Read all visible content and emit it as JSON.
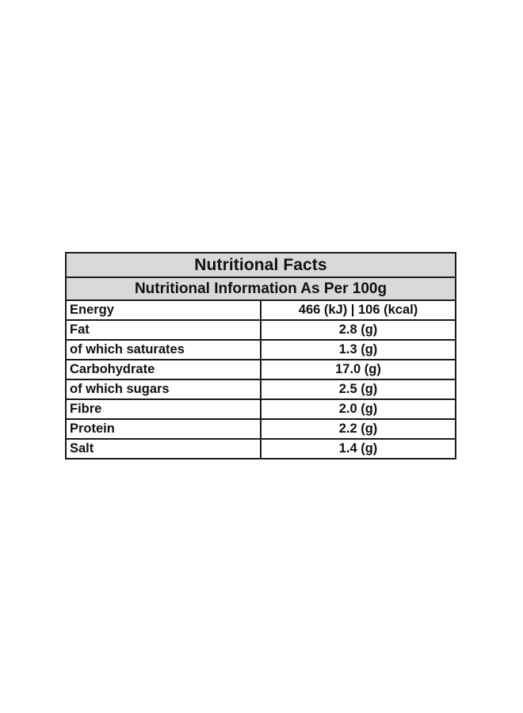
{
  "table": {
    "title": "Nutritional Facts",
    "subtitle": "Nutritional Information As Per 100g",
    "rows": [
      {
        "name": "Energy",
        "value": "466 (kJ) | 106 (kcal)"
      },
      {
        "name": "Fat",
        "value": "2.8 (g)"
      },
      {
        "name": "of which saturates",
        "value": "1.3 (g)"
      },
      {
        "name": "Carbohydrate",
        "value": "17.0 (g)"
      },
      {
        "name": "of which sugars",
        "value": "2.5 (g)"
      },
      {
        "name": "Fibre",
        "value": "2.0 (g)"
      },
      {
        "name": "Protein",
        "value": "2.2 (g)"
      },
      {
        "name": "Salt",
        "value": "1.4 (g)"
      }
    ]
  },
  "colors": {
    "header_background": "#d9d9d9",
    "border": "#1a1a1a",
    "text": "#111111",
    "page_background": "#ffffff"
  }
}
